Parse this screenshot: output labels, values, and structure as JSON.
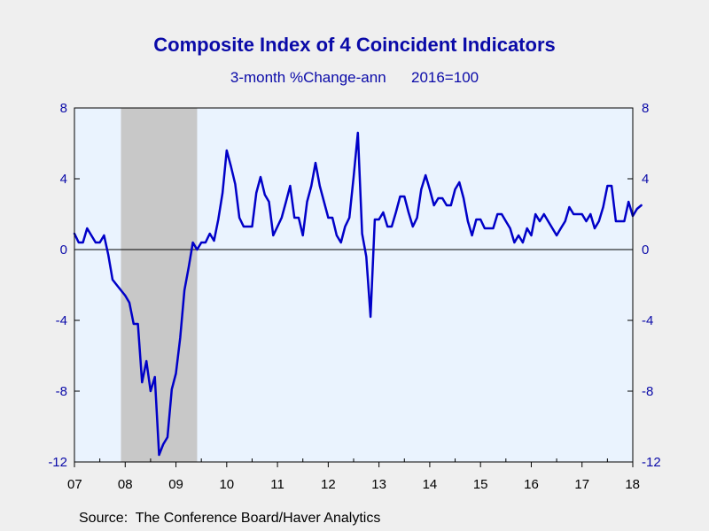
{
  "chart_data": {
    "type": "line",
    "title": "Composite Index of 4 Coincident Indicators",
    "subtitle": "3-month %Change-ann      2016=100",
    "source": "Source:  The Conference Board/Haver Analytics",
    "ylim": [
      -12,
      8
    ],
    "yticks": [
      8,
      4,
      0,
      -4,
      -8,
      -12
    ],
    "xlim": [
      2007.0,
      2018.0
    ],
    "xtick_labels": [
      "07",
      "08",
      "09",
      "10",
      "11",
      "12",
      "13",
      "14",
      "15",
      "16",
      "17",
      "18"
    ],
    "recession": {
      "start": 2007.917,
      "end": 2009.417
    },
    "grid": false,
    "zero_line": true,
    "series": [
      {
        "color": "#0000c8",
        "x": [
          2007.0,
          2007.083,
          2007.167,
          2007.25,
          2007.333,
          2007.417,
          2007.5,
          2007.583,
          2007.667,
          2007.75,
          2007.833,
          2007.917,
          2008.0,
          2008.083,
          2008.167,
          2008.25,
          2008.333,
          2008.417,
          2008.5,
          2008.583,
          2008.667,
          2008.75,
          2008.833,
          2008.917,
          2009.0,
          2009.083,
          2009.167,
          2009.25,
          2009.333,
          2009.417,
          2009.5,
          2009.583,
          2009.667,
          2009.75,
          2009.833,
          2009.917,
          2010.0,
          2010.083,
          2010.167,
          2010.25,
          2010.333,
          2010.417,
          2010.5,
          2010.583,
          2010.667,
          2010.75,
          2010.833,
          2010.917,
          2011.0,
          2011.083,
          2011.167,
          2011.25,
          2011.333,
          2011.417,
          2011.5,
          2011.583,
          2011.667,
          2011.75,
          2011.833,
          2011.917,
          2012.0,
          2012.083,
          2012.167,
          2012.25,
          2012.333,
          2012.417,
          2012.5,
          2012.583,
          2012.667,
          2012.75,
          2012.833,
          2012.917,
          2013.0,
          2013.083,
          2013.167,
          2013.25,
          2013.333,
          2013.417,
          2013.5,
          2013.583,
          2013.667,
          2013.75,
          2013.833,
          2013.917,
          2014.0,
          2014.083,
          2014.167,
          2014.25,
          2014.333,
          2014.417,
          2014.5,
          2014.583,
          2014.667,
          2014.75,
          2014.833,
          2014.917,
          2015.0,
          2015.083,
          2015.167,
          2015.25,
          2015.333,
          2015.417,
          2015.5,
          2015.583,
          2015.667,
          2015.75,
          2015.833,
          2015.917,
          2016.0,
          2016.083,
          2016.167,
          2016.25,
          2016.333,
          2016.417,
          2016.5,
          2016.583,
          2016.667,
          2016.75,
          2016.833,
          2016.917,
          2017.0,
          2017.083,
          2017.167,
          2017.25,
          2017.333,
          2017.417,
          2017.5,
          2017.583,
          2017.667,
          2017.75,
          2017.833,
          2017.917,
          2018.0,
          2018.083,
          2018.167
        ],
        "values": [
          0.9,
          0.4,
          0.4,
          1.2,
          0.8,
          0.4,
          0.4,
          0.8,
          -0.3,
          -1.7,
          -2.0,
          -2.3,
          -2.6,
          -3.0,
          -4.2,
          -4.2,
          -7.5,
          -6.3,
          -8.0,
          -7.2,
          -11.6,
          -11.0,
          -10.6,
          -7.9,
          -7.0,
          -5.0,
          -2.3,
          -1.0,
          0.4,
          0.0,
          0.4,
          0.4,
          0.9,
          0.5,
          1.7,
          3.2,
          5.6,
          4.7,
          3.7,
          1.8,
          1.3,
          1.3,
          1.3,
          3.2,
          4.1,
          3.1,
          2.7,
          0.8,
          1.3,
          1.8,
          2.7,
          3.6,
          1.8,
          1.8,
          0.8,
          2.7,
          3.6,
          4.9,
          3.6,
          2.7,
          1.8,
          1.8,
          0.8,
          0.4,
          1.3,
          1.8,
          4.1,
          6.6,
          0.9,
          -0.4,
          -3.8,
          1.7,
          1.7,
          2.1,
          1.3,
          1.3,
          2.1,
          3.0,
          3.0,
          2.1,
          1.3,
          1.8,
          3.4,
          4.2,
          3.4,
          2.5,
          2.9,
          2.9,
          2.5,
          2.5,
          3.4,
          3.8,
          2.9,
          1.6,
          0.8,
          1.7,
          1.7,
          1.2,
          1.2,
          1.2,
          2.0,
          2.0,
          1.6,
          1.2,
          0.4,
          0.8,
          0.4,
          1.2,
          0.8,
          2.0,
          1.6,
          2.0,
          1.6,
          1.2,
          0.8,
          1.2,
          1.6,
          2.4,
          2.0,
          2.0,
          2.0,
          1.6,
          2.0,
          1.2,
          1.6,
          2.4,
          3.6,
          3.6,
          1.6,
          1.6,
          1.6,
          2.7,
          1.9,
          2.3,
          2.5
        ]
      }
    ]
  }
}
